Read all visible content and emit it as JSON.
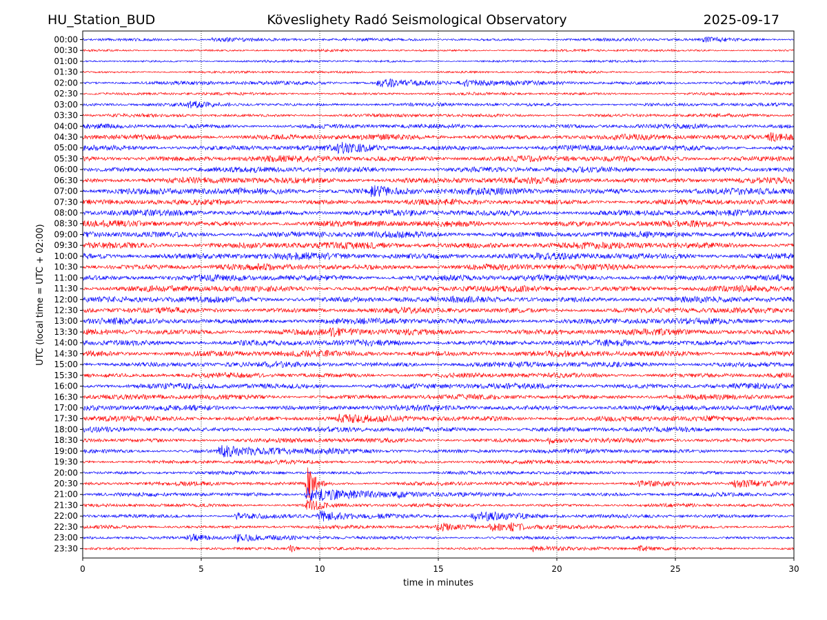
{
  "header": {
    "station": "HU_Station_BUD",
    "observatory": "Köveslighety Radó Seismological Observatory",
    "date": "2025-09-17"
  },
  "chart_data": {
    "type": "line",
    "title": "Köveslighety Radó Seismological Observatory",
    "xlabel": "time in minutes",
    "ylabel": "UTC (local time = UTC + 02:00)",
    "xlim": [
      0,
      30
    ],
    "xticks": [
      "0",
      "5",
      "10",
      "15",
      "20",
      "25",
      "30"
    ],
    "vertical_grid": "dotted at each x tick",
    "row_labels": [
      "00:00",
      "00:30",
      "01:00",
      "01:30",
      "02:00",
      "02:30",
      "03:00",
      "03:30",
      "04:00",
      "04:30",
      "05:00",
      "05:30",
      "06:00",
      "06:30",
      "07:00",
      "07:30",
      "08:00",
      "08:30",
      "09:00",
      "09:30",
      "10:00",
      "10:30",
      "11:00",
      "11:30",
      "12:00",
      "12:30",
      "13:00",
      "13:30",
      "14:00",
      "14:30",
      "15:00",
      "15:30",
      "16:00",
      "16:30",
      "17:00",
      "17:30",
      "18:00",
      "18:30",
      "19:00",
      "19:30",
      "20:00",
      "20:30",
      "21:00",
      "21:30",
      "22:00",
      "22:30",
      "23:00",
      "23:30"
    ],
    "colors": [
      "#0000ff",
      "#ff0000"
    ],
    "noise_amplitude": [
      0.25,
      0.2,
      0.2,
      0.2,
      0.35,
      0.25,
      0.3,
      0.3,
      0.4,
      0.5,
      0.5,
      0.55,
      0.5,
      0.55,
      0.6,
      0.5,
      0.55,
      0.55,
      0.55,
      0.6,
      0.6,
      0.55,
      0.55,
      0.55,
      0.55,
      0.5,
      0.55,
      0.55,
      0.55,
      0.55,
      0.5,
      0.45,
      0.5,
      0.45,
      0.5,
      0.5,
      0.45,
      0.4,
      0.4,
      0.35,
      0.3,
      0.35,
      0.35,
      0.3,
      0.3,
      0.3,
      0.3,
      0.25
    ],
    "events": [
      {
        "row": 0,
        "t": 5.5,
        "amp": 0.5,
        "dur": 1.2
      },
      {
        "row": 0,
        "t": 26.2,
        "amp": 0.4,
        "dur": 1.0
      },
      {
        "row": 4,
        "t": 12.5,
        "amp": 0.8,
        "dur": 1.5
      },
      {
        "row": 4,
        "t": 16.0,
        "amp": 0.6,
        "dur": 1.0
      },
      {
        "row": 6,
        "t": 4.5,
        "amp": 0.5,
        "dur": 1.0
      },
      {
        "row": 9,
        "t": 29.0,
        "amp": 0.7,
        "dur": 1.5
      },
      {
        "row": 10,
        "t": 10.8,
        "amp": 0.7,
        "dur": 1.0
      },
      {
        "row": 14,
        "t": 12.2,
        "amp": 0.8,
        "dur": 0.8
      },
      {
        "row": 27,
        "t": 10.5,
        "amp": 0.5,
        "dur": 1.0
      },
      {
        "row": 35,
        "t": 10.8,
        "amp": 0.6,
        "dur": 1.0
      },
      {
        "row": 37,
        "t": 19.7,
        "amp": 0.6,
        "dur": 0.4
      },
      {
        "row": 38,
        "t": 5.8,
        "amp": 0.9,
        "dur": 2.5
      },
      {
        "row": 41,
        "t": 9.5,
        "amp": 3.5,
        "dur": 0.3
      },
      {
        "row": 41,
        "t": 23.5,
        "amp": 0.5,
        "dur": 1.0
      },
      {
        "row": 41,
        "t": 27.5,
        "amp": 0.6,
        "dur": 1.0
      },
      {
        "row": 42,
        "t": 9.5,
        "amp": 1.6,
        "dur": 1.8
      },
      {
        "row": 42,
        "t": 13.3,
        "amp": 0.4,
        "dur": 0.5
      },
      {
        "row": 43,
        "t": 9.5,
        "amp": 1.2,
        "dur": 0.6
      },
      {
        "row": 44,
        "t": 10.0,
        "amp": 1.0,
        "dur": 1.2
      },
      {
        "row": 44,
        "t": 16.5,
        "amp": 1.0,
        "dur": 2.0
      },
      {
        "row": 44,
        "t": 6.5,
        "amp": 0.6,
        "dur": 1.5
      },
      {
        "row": 45,
        "t": 15.0,
        "amp": 0.8,
        "dur": 0.8
      },
      {
        "row": 45,
        "t": 17.2,
        "amp": 0.8,
        "dur": 1.5
      },
      {
        "row": 45,
        "t": 18.1,
        "amp": 0.6,
        "dur": 0.5
      },
      {
        "row": 46,
        "t": 4.5,
        "amp": 0.7,
        "dur": 1.0
      },
      {
        "row": 46,
        "t": 6.5,
        "amp": 0.8,
        "dur": 1.0
      },
      {
        "row": 47,
        "t": 8.8,
        "amp": 0.8,
        "dur": 0.15
      },
      {
        "row": 47,
        "t": 19.0,
        "amp": 0.5,
        "dur": 1.0
      },
      {
        "row": 47,
        "t": 23.5,
        "amp": 0.5,
        "dur": 1.0
      }
    ]
  }
}
